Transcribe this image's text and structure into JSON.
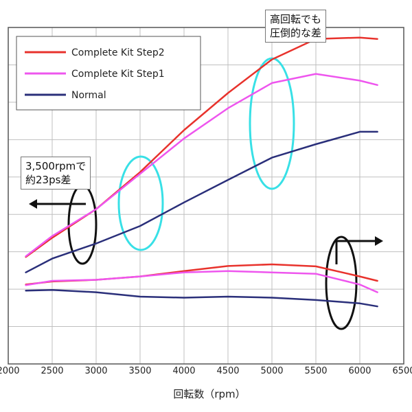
{
  "chart_data": {
    "type": "line",
    "title": "",
    "xlabel": "回転数（rpm）",
    "ylabel": "",
    "xlim": [
      2000,
      6500
    ],
    "xticks": [
      2000,
      2500,
      3000,
      3500,
      4000,
      4500,
      5000,
      5500,
      6000,
      6500
    ],
    "grid": true,
    "legend_position": "top-left",
    "series": [
      {
        "name": "Complete Kit Step2",
        "axis": "left",
        "color": "#e8322c",
        "points": [
          [
            2200,
            0.318
          ],
          [
            2500,
            0.375
          ],
          [
            3000,
            0.46
          ],
          [
            3500,
            0.57
          ],
          [
            4000,
            0.695
          ],
          [
            4500,
            0.805
          ],
          [
            5000,
            0.905
          ],
          [
            5500,
            0.966
          ],
          [
            6000,
            0.97
          ],
          [
            6200,
            0.966
          ]
        ]
      },
      {
        "name": "Complete Kit Step1",
        "axis": "left",
        "color": "#ee55ee",
        "points": [
          [
            2200,
            0.32
          ],
          [
            2500,
            0.38
          ],
          [
            3000,
            0.46
          ],
          [
            3500,
            0.565
          ],
          [
            4000,
            0.67
          ],
          [
            4500,
            0.76
          ],
          [
            5000,
            0.835
          ],
          [
            5500,
            0.862
          ],
          [
            6000,
            0.842
          ],
          [
            6200,
            0.829
          ]
        ]
      },
      {
        "name": "Normal",
        "axis": "left",
        "color": "#2a2f7a",
        "points": [
          [
            2200,
            0.272
          ],
          [
            2500,
            0.313
          ],
          [
            3000,
            0.358
          ],
          [
            3500,
            0.41
          ],
          [
            4000,
            0.48
          ],
          [
            4500,
            0.547
          ],
          [
            5000,
            0.613
          ],
          [
            5500,
            0.653
          ],
          [
            6000,
            0.69
          ],
          [
            6200,
            0.69
          ]
        ]
      },
      {
        "name": "Complete Kit Step2",
        "axis": "right",
        "color": "#e8322c",
        "points": [
          [
            2200,
            0.236
          ],
          [
            2500,
            0.245
          ],
          [
            3000,
            0.25
          ],
          [
            3500,
            0.26
          ],
          [
            4000,
            0.276
          ],
          [
            4500,
            0.291
          ],
          [
            5000,
            0.296
          ],
          [
            5500,
            0.29
          ],
          [
            6000,
            0.26
          ],
          [
            6200,
            0.247
          ]
        ]
      },
      {
        "name": "Complete Kit Step1",
        "axis": "right",
        "color": "#ee55ee",
        "points": [
          [
            2200,
            0.234
          ],
          [
            2500,
            0.247
          ],
          [
            3000,
            0.25
          ],
          [
            3500,
            0.26
          ],
          [
            4000,
            0.272
          ],
          [
            4500,
            0.276
          ],
          [
            5000,
            0.272
          ],
          [
            5500,
            0.268
          ],
          [
            6000,
            0.236
          ],
          [
            6200,
            0.213
          ]
        ]
      },
      {
        "name": "Normal",
        "axis": "right",
        "color": "#2a2f7a",
        "points": [
          [
            2200,
            0.218
          ],
          [
            2500,
            0.22
          ],
          [
            3000,
            0.213
          ],
          [
            3500,
            0.2
          ],
          [
            4000,
            0.197
          ],
          [
            4500,
            0.2
          ],
          [
            5000,
            0.197
          ],
          [
            5500,
            0.19
          ],
          [
            6000,
            0.18
          ],
          [
            6200,
            0.171
          ]
        ]
      }
    ]
  },
  "annotations": {
    "top_right": [
      "高回転でも",
      "圧倒的な差"
    ],
    "left": [
      "3,500rpmで",
      "約23ps差"
    ]
  }
}
